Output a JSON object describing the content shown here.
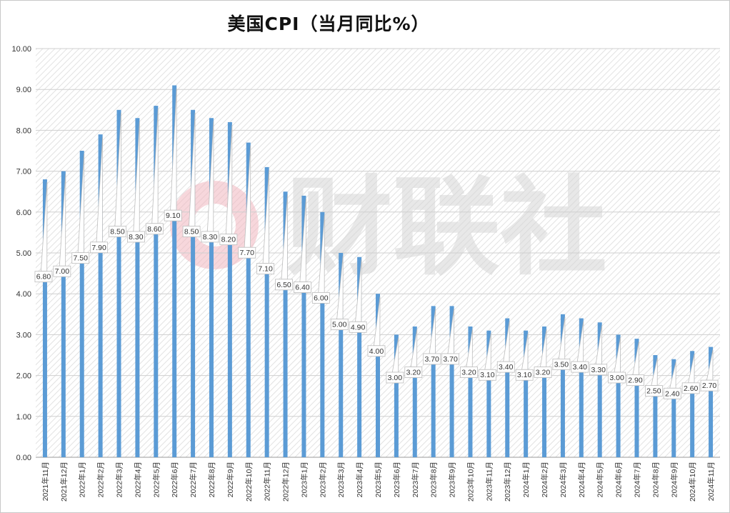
{
  "chart_data": {
    "type": "bar",
    "title": "美国CPI（当月同比%）",
    "xlabel": "",
    "ylabel": "",
    "ylim": [
      0,
      10
    ],
    "yticks": [
      "0.00",
      "1.00",
      "2.00",
      "3.00",
      "4.00",
      "5.00",
      "6.00",
      "7.00",
      "8.00",
      "9.00",
      "10.00"
    ],
    "grid": true,
    "legend": "none",
    "bar_color": "#5b9bd5",
    "categories": [
      "2021年11月",
      "2021年12月",
      "2022年1月",
      "2022年2月",
      "2022年3月",
      "2022年4月",
      "2022年5月",
      "2022年6月",
      "2022年7月",
      "2022年8月",
      "2022年9月",
      "2022年10月",
      "2022年11月",
      "2022年12月",
      "2023年1月",
      "2023年2月",
      "2023年3月",
      "2023年4月",
      "2023年5月",
      "2023年6月",
      "2023年7月",
      "2023年8月",
      "2023年9月",
      "2023年10月",
      "2023年11月",
      "2023年12月",
      "2024年1月",
      "2024年2月",
      "2024年3月",
      "2024年4月",
      "2024年5月",
      "2024年6月",
      "2024年7月",
      "2024年8月",
      "2024年9月",
      "2024年10月",
      "2024年11月"
    ],
    "values": [
      6.8,
      7.0,
      7.5,
      7.9,
      8.5,
      8.3,
      8.6,
      9.1,
      8.5,
      8.3,
      8.2,
      7.7,
      7.1,
      6.5,
      6.4,
      6.0,
      5.0,
      4.9,
      4.0,
      3.0,
      3.2,
      3.7,
      3.7,
      3.2,
      3.1,
      3.4,
      3.1,
      3.2,
      3.5,
      3.4,
      3.3,
      3.0,
      2.9,
      2.5,
      2.4,
      2.6,
      2.7
    ],
    "data_labels": [
      "6.80",
      "7.00",
      "7.50",
      "7.90",
      "8.50",
      "8.30",
      "8.60",
      "9.10",
      "8.50",
      "8.30",
      "8.20",
      "7.70",
      "7.10",
      "6.50",
      "6.40",
      "6.00",
      "5.00",
      "4.90",
      "4.00",
      "3.00",
      "3.20",
      "3.70",
      "3.70",
      "3.20",
      "3.10",
      "3.40",
      "3.10",
      "3.20",
      "3.50",
      "3.40",
      "3.30",
      "3.00",
      "2.90",
      "2.50",
      "2.40",
      "2.60",
      "2.70"
    ]
  },
  "watermark": {
    "text": "财联社",
    "logo_color": "#e8a0a8",
    "text_color": "#d0d0d0"
  }
}
